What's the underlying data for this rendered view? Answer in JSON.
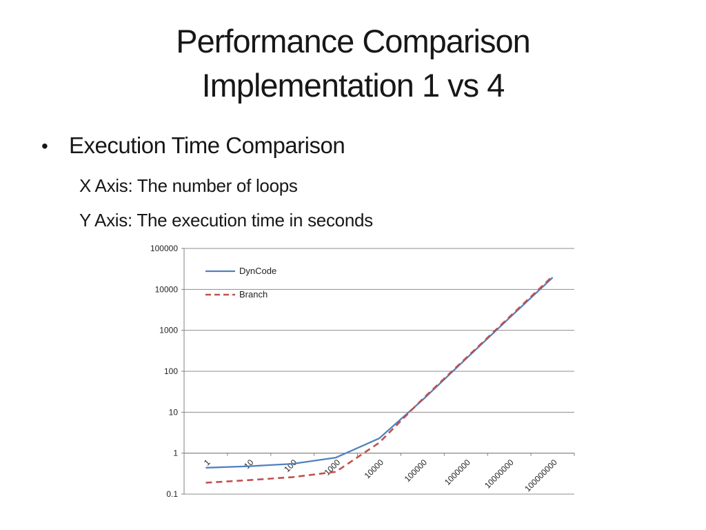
{
  "slide": {
    "title_line1": "Performance Comparison",
    "title_line2": "Implementation 1 vs 4",
    "bullet_marker": "•",
    "bullet_text": "Execution Time Comparison",
    "sub_lines": [
      "X Axis: The number of loops",
      "Y Axis: The execution time in seconds"
    ]
  },
  "chart_data": {
    "type": "line",
    "x_scale": "log-categories",
    "y_scale": "log",
    "title": "",
    "xlabel": "The number of loops",
    "ylabel": "The execution time in seconds",
    "categories": [
      "1",
      "10",
      "100",
      "1000",
      "10000",
      "100000",
      "1000000",
      "10000000",
      "100000000"
    ],
    "series": [
      {
        "name": "DynCode",
        "color": "#4F81BD",
        "dash": "solid",
        "values": [
          0.44,
          0.48,
          0.55,
          0.78,
          2.3,
          20,
          200,
          2000,
          19500
        ]
      },
      {
        "name": "Branch",
        "color": "#C0504D",
        "dash": "dashed",
        "values": [
          0.19,
          0.22,
          0.26,
          0.35,
          1.8,
          21,
          210,
          2100,
          21000
        ]
      }
    ],
    "y_ticks": [
      "100000",
      "10000",
      "1000",
      "100",
      "10",
      "1",
      "0.1"
    ],
    "ylim": [
      0.1,
      100000
    ],
    "grid": "horizontal",
    "legend_position": "top-left-inside",
    "gridline_color": "#8C8C8C",
    "axis_color": "#7F7F7F",
    "tick_label_color": "#1f1f1f",
    "tick_label_size": 12,
    "legend_label_size": 13
  }
}
